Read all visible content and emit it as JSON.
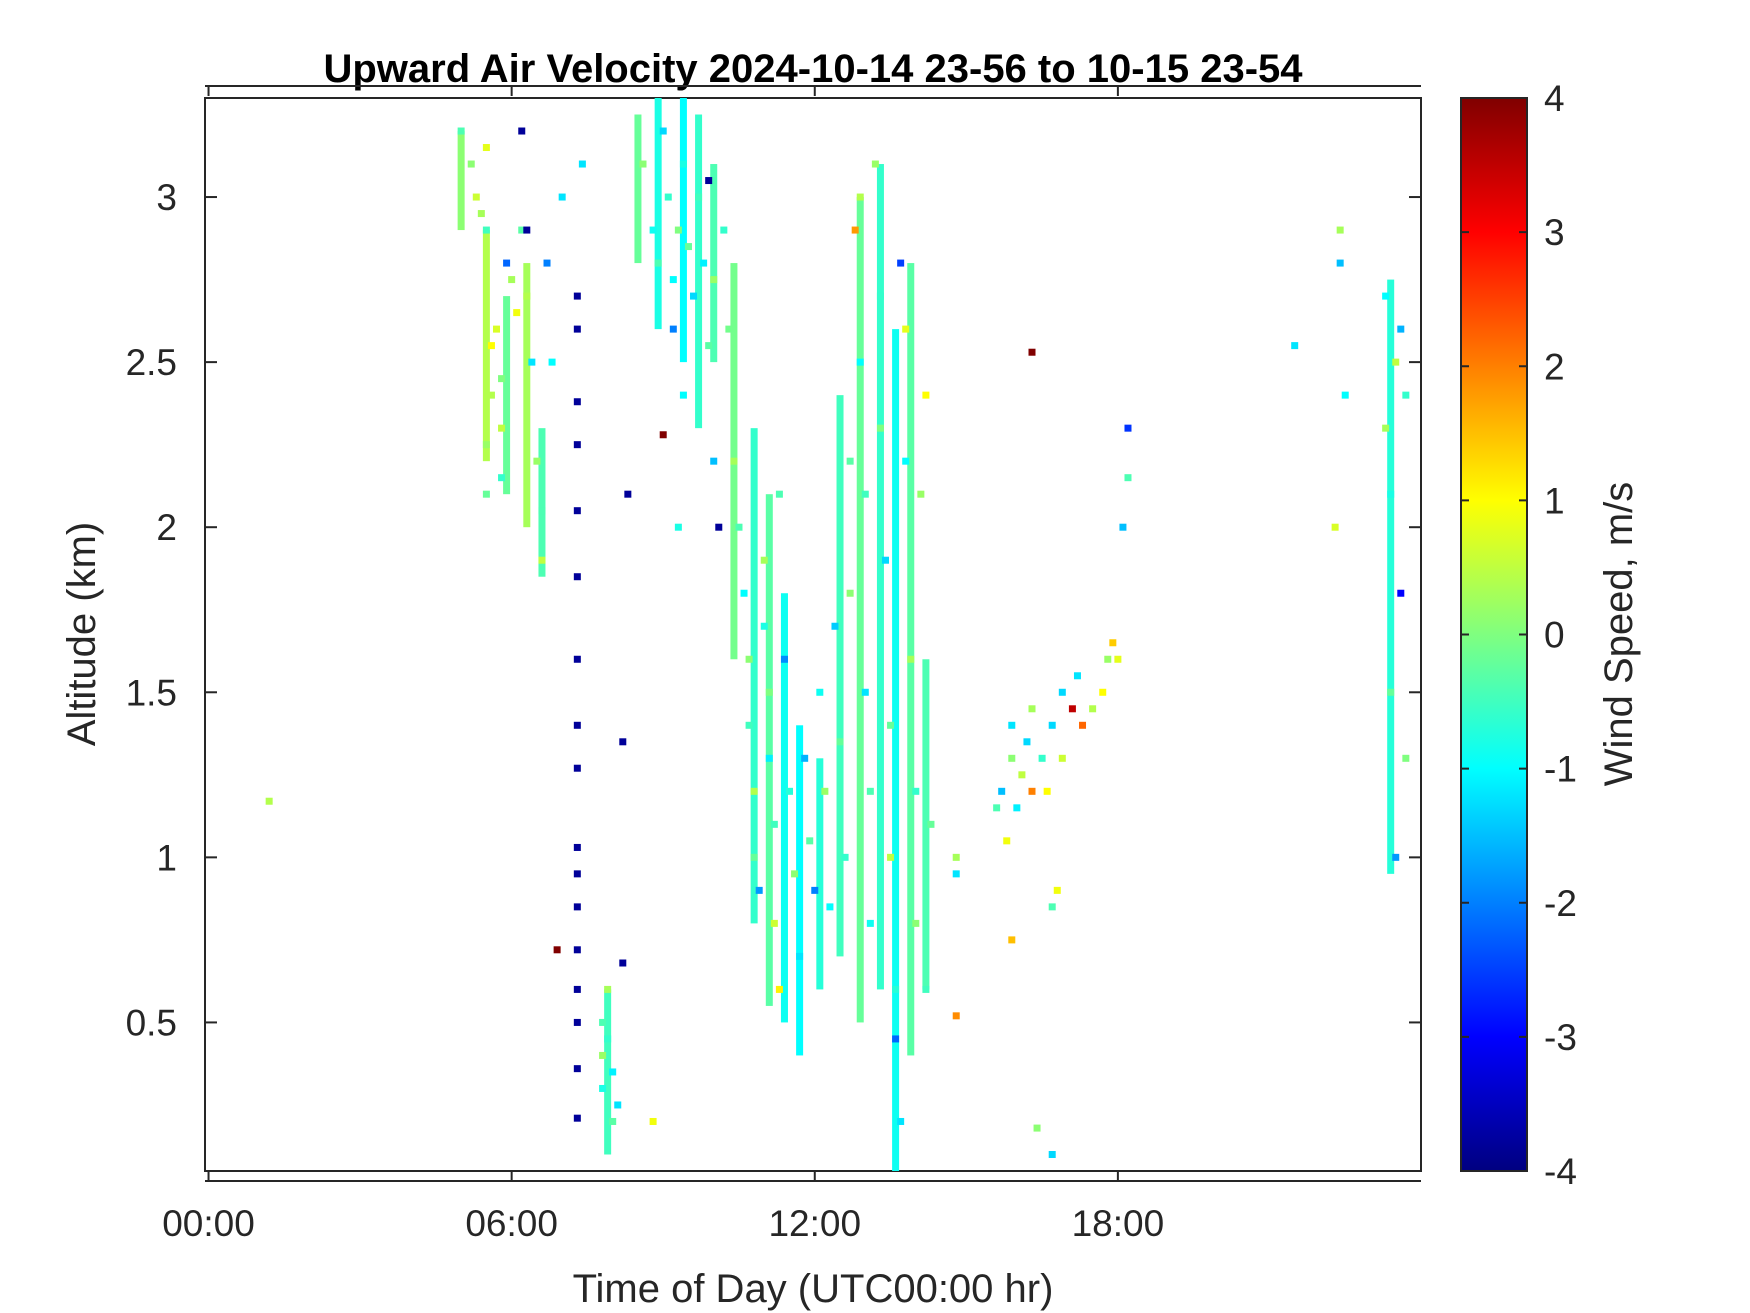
{
  "chart_data": {
    "type": "heatmap",
    "title": "Upward Air Velocity 2024-10-14 23-56 to 10-15 23-54",
    "xlabel": "Time of Day (UTC00:00 hr)",
    "ylabel": "Altitude (km)",
    "colorbar_label": "Wind Speed, m/s",
    "x_units": "hours",
    "xlim": [
      -0.07,
      24.0
    ],
    "ylim": [
      0.05,
      3.3
    ],
    "clim": [
      -4,
      4
    ],
    "colormap": "jet",
    "x_ticks": [
      {
        "value": 0,
        "label": "00:00"
      },
      {
        "value": 6,
        "label": "06:00"
      },
      {
        "value": 12,
        "label": "12:00"
      },
      {
        "value": 18,
        "label": "18:00"
      }
    ],
    "y_ticks": [
      {
        "value": 0.5,
        "label": "0.5"
      },
      {
        "value": 1.0,
        "label": "1"
      },
      {
        "value": 1.5,
        "label": "1.5"
      },
      {
        "value": 2.0,
        "label": "2"
      },
      {
        "value": 2.5,
        "label": "2.5"
      },
      {
        "value": 3.0,
        "label": "3"
      }
    ],
    "colorbar_ticks": [
      {
        "value": 4,
        "label": "4"
      },
      {
        "value": 3,
        "label": "3"
      },
      {
        "value": 2,
        "label": "2"
      },
      {
        "value": 1,
        "label": "1"
      },
      {
        "value": 0,
        "label": "0"
      },
      {
        "value": -1,
        "label": "-1"
      },
      {
        "value": -2,
        "label": "-2"
      },
      {
        "value": -3,
        "label": "-3"
      },
      {
        "value": -4,
        "label": "-4"
      }
    ],
    "cells": [
      {
        "t": 1.2,
        "z": 1.17,
        "v": 0.4
      },
      {
        "t": 5.0,
        "z": 3.2,
        "v": -0.4
      },
      {
        "t": 5.2,
        "z": 3.1,
        "v": 0.1
      },
      {
        "t": 5.3,
        "z": 3.0,
        "v": 0.6
      },
      {
        "t": 5.4,
        "z": 2.95,
        "v": 0.3
      },
      {
        "t": 5.5,
        "z": 3.15,
        "v": 0.8
      },
      {
        "t": 5.5,
        "z": 2.9,
        "v": -0.5
      },
      {
        "t": 5.6,
        "z": 2.55,
        "v": 1.0
      },
      {
        "t": 5.6,
        "z": 2.4,
        "v": 0.4
      },
      {
        "t": 5.5,
        "z": 2.25,
        "v": 0.2
      },
      {
        "t": 5.5,
        "z": 2.1,
        "v": -0.2
      },
      {
        "t": 5.7,
        "z": 2.6,
        "v": 0.7
      },
      {
        "t": 5.8,
        "z": 2.45,
        "v": 0.0
      },
      {
        "t": 5.8,
        "z": 2.3,
        "v": 0.5
      },
      {
        "t": 5.8,
        "z": 2.15,
        "v": -0.6
      },
      {
        "t": 5.9,
        "z": 2.8,
        "v": -2.2
      },
      {
        "t": 6.0,
        "z": 2.75,
        "v": 0.3
      },
      {
        "t": 6.1,
        "z": 2.65,
        "v": 0.9
      },
      {
        "t": 6.2,
        "z": 2.9,
        "v": -0.3
      },
      {
        "t": 6.3,
        "z": 2.7,
        "v": 0.4
      },
      {
        "t": 6.3,
        "z": 2.9,
        "v": -3.8
      },
      {
        "t": 6.4,
        "z": 2.5,
        "v": -1.2
      },
      {
        "t": 6.5,
        "z": 2.2,
        "v": 0.2
      },
      {
        "t": 6.6,
        "z": 2.05,
        "v": -0.4
      },
      {
        "t": 6.6,
        "z": 1.9,
        "v": 0.5
      },
      {
        "t": 6.7,
        "z": 2.8,
        "v": -2.0
      },
      {
        "t": 6.8,
        "z": 2.5,
        "v": -1.0
      },
      {
        "t": 7.0,
        "z": 3.0,
        "v": -1.2
      },
      {
        "t": 6.2,
        "z": 3.2,
        "v": -3.8
      },
      {
        "t": 7.3,
        "z": 2.7,
        "v": -3.8
      },
      {
        "t": 7.3,
        "z": 2.6,
        "v": -3.8
      },
      {
        "t": 7.3,
        "z": 2.38,
        "v": -3.8
      },
      {
        "t": 7.3,
        "z": 2.25,
        "v": -3.8
      },
      {
        "t": 7.3,
        "z": 2.05,
        "v": -3.8
      },
      {
        "t": 7.3,
        "z": 1.85,
        "v": -3.8
      },
      {
        "t": 7.3,
        "z": 1.6,
        "v": -3.8
      },
      {
        "t": 7.3,
        "z": 1.4,
        "v": -3.8
      },
      {
        "t": 7.3,
        "z": 1.27,
        "v": -3.8
      },
      {
        "t": 7.3,
        "z": 1.03,
        "v": -3.8
      },
      {
        "t": 7.3,
        "z": 0.95,
        "v": -3.8
      },
      {
        "t": 7.3,
        "z": 0.85,
        "v": -3.8
      },
      {
        "t": 7.3,
        "z": 0.72,
        "v": -3.8
      },
      {
        "t": 7.3,
        "z": 0.6,
        "v": -3.8
      },
      {
        "t": 7.3,
        "z": 0.5,
        "v": -3.8
      },
      {
        "t": 7.3,
        "z": 0.36,
        "v": -3.8
      },
      {
        "t": 7.3,
        "z": 0.21,
        "v": -3.8
      },
      {
        "t": 6.9,
        "z": 0.72,
        "v": 4.0
      },
      {
        "t": 7.4,
        "z": 3.1,
        "v": -1.2
      },
      {
        "t": 7.8,
        "z": 0.5,
        "v": -0.4
      },
      {
        "t": 7.8,
        "z": 0.4,
        "v": 0.2
      },
      {
        "t": 7.8,
        "z": 0.3,
        "v": -0.8
      },
      {
        "t": 7.9,
        "z": 0.6,
        "v": 0.3
      },
      {
        "t": 7.9,
        "z": 0.45,
        "v": -0.6
      },
      {
        "t": 8.0,
        "z": 0.35,
        "v": -1.1
      },
      {
        "t": 8.0,
        "z": 0.2,
        "v": -0.3
      },
      {
        "t": 8.1,
        "z": 0.25,
        "v": -1.2
      },
      {
        "t": 8.2,
        "z": 0.68,
        "v": -3.8
      },
      {
        "t": 8.2,
        "z": 1.35,
        "v": -3.8
      },
      {
        "t": 8.3,
        "z": 2.1,
        "v": -3.8
      },
      {
        "t": 8.8,
        "z": 0.2,
        "v": 0.9
      },
      {
        "t": 9.0,
        "z": 2.28,
        "v": 4.0
      },
      {
        "t": 8.6,
        "z": 3.1,
        "v": 0.1
      },
      {
        "t": 8.8,
        "z": 2.9,
        "v": -0.9
      },
      {
        "t": 8.9,
        "z": 2.8,
        "v": -0.4
      },
      {
        "t": 9.0,
        "z": 3.2,
        "v": -1.3
      },
      {
        "t": 9.1,
        "z": 3.0,
        "v": -0.6
      },
      {
        "t": 9.2,
        "z": 2.75,
        "v": -1.0
      },
      {
        "t": 9.2,
        "z": 2.6,
        "v": -2.0
      },
      {
        "t": 9.3,
        "z": 2.9,
        "v": 0.0
      },
      {
        "t": 9.4,
        "z": 3.1,
        "v": -0.8
      },
      {
        "t": 9.4,
        "z": 2.4,
        "v": -1.0
      },
      {
        "t": 9.3,
        "z": 2.0,
        "v": -0.8
      },
      {
        "t": 9.5,
        "z": 2.85,
        "v": -0.2
      },
      {
        "t": 9.6,
        "z": 2.7,
        "v": -1.3
      },
      {
        "t": 9.7,
        "z": 3.0,
        "v": -0.5
      },
      {
        "t": 9.8,
        "z": 2.8,
        "v": -1.1
      },
      {
        "t": 9.9,
        "z": 3.05,
        "v": -3.8
      },
      {
        "t": 9.9,
        "z": 2.55,
        "v": -0.3
      },
      {
        "t": 10.0,
        "z": 2.75,
        "v": 0.2
      },
      {
        "t": 10.0,
        "z": 2.2,
        "v": -1.5
      },
      {
        "t": 10.1,
        "z": 2.0,
        "v": -3.8
      },
      {
        "t": 10.2,
        "z": 2.9,
        "v": -0.6
      },
      {
        "t": 10.3,
        "z": 2.6,
        "v": -0.1
      },
      {
        "t": 10.4,
        "z": 2.2,
        "v": 0.3
      },
      {
        "t": 10.5,
        "z": 2.0,
        "v": -0.4
      },
      {
        "t": 10.6,
        "z": 1.8,
        "v": -1.0
      },
      {
        "t": 10.7,
        "z": 1.6,
        "v": 0.1
      },
      {
        "t": 10.7,
        "z": 1.4,
        "v": -0.5
      },
      {
        "t": 10.8,
        "z": 1.2,
        "v": 0.4
      },
      {
        "t": 10.8,
        "z": 1.0,
        "v": -0.2
      },
      {
        "t": 10.9,
        "z": 0.9,
        "v": -1.8
      },
      {
        "t": 11.0,
        "z": 1.9,
        "v": 0.3
      },
      {
        "t": 11.0,
        "z": 1.7,
        "v": -0.8
      },
      {
        "t": 11.1,
        "z": 1.5,
        "v": 0.0
      },
      {
        "t": 11.1,
        "z": 1.3,
        "v": -1.1
      },
      {
        "t": 11.2,
        "z": 1.1,
        "v": -0.5
      },
      {
        "t": 11.2,
        "z": 0.8,
        "v": 0.6
      },
      {
        "t": 11.3,
        "z": 0.6,
        "v": 1.1
      },
      {
        "t": 11.3,
        "z": 2.1,
        "v": -0.4
      },
      {
        "t": 11.4,
        "z": 1.6,
        "v": -1.9
      },
      {
        "t": 11.5,
        "z": 1.2,
        "v": -0.7
      },
      {
        "t": 11.6,
        "z": 0.95,
        "v": 0.1
      },
      {
        "t": 11.7,
        "z": 0.7,
        "v": -1.2
      },
      {
        "t": 11.8,
        "z": 1.3,
        "v": -1.6
      },
      {
        "t": 11.9,
        "z": 1.05,
        "v": -0.3
      },
      {
        "t": 12.0,
        "z": 0.9,
        "v": -2.0
      },
      {
        "t": 12.1,
        "z": 1.5,
        "v": -0.9
      },
      {
        "t": 12.2,
        "z": 1.2,
        "v": 0.2
      },
      {
        "t": 12.3,
        "z": 0.85,
        "v": -1.0
      },
      {
        "t": 12.4,
        "z": 1.7,
        "v": -1.4
      },
      {
        "t": 12.5,
        "z": 1.35,
        "v": -0.2
      },
      {
        "t": 12.6,
        "z": 1.0,
        "v": -0.6
      },
      {
        "t": 12.7,
        "z": 2.2,
        "v": -0.3
      },
      {
        "t": 12.7,
        "z": 1.8,
        "v": 0.1
      },
      {
        "t": 12.8,
        "z": 2.9,
        "v": 1.8
      },
      {
        "t": 12.9,
        "z": 3.0,
        "v": 0.4
      },
      {
        "t": 12.9,
        "z": 2.5,
        "v": -1.0
      },
      {
        "t": 13.0,
        "z": 2.1,
        "v": -0.5
      },
      {
        "t": 13.0,
        "z": 1.5,
        "v": -1.2
      },
      {
        "t": 13.1,
        "z": 1.2,
        "v": -0.4
      },
      {
        "t": 13.1,
        "z": 0.8,
        "v": -0.9
      },
      {
        "t": 13.2,
        "z": 3.1,
        "v": 0.2
      },
      {
        "t": 13.3,
        "z": 2.7,
        "v": -0.6
      },
      {
        "t": 13.3,
        "z": 2.3,
        "v": 0.0
      },
      {
        "t": 13.4,
        "z": 1.9,
        "v": -1.3
      },
      {
        "t": 13.5,
        "z": 1.4,
        "v": -0.2
      },
      {
        "t": 13.5,
        "z": 1.0,
        "v": 0.5
      },
      {
        "t": 13.6,
        "z": 0.6,
        "v": -0.7
      },
      {
        "t": 13.6,
        "z": 0.45,
        "v": -2.2
      },
      {
        "t": 13.7,
        "z": 0.2,
        "v": -1.2
      },
      {
        "t": 13.7,
        "z": 2.8,
        "v": -2.5
      },
      {
        "t": 13.8,
        "z": 2.6,
        "v": 0.8
      },
      {
        "t": 13.8,
        "z": 2.2,
        "v": -1.0
      },
      {
        "t": 13.9,
        "z": 1.6,
        "v": 0.3
      },
      {
        "t": 14.0,
        "z": 1.2,
        "v": -0.6
      },
      {
        "t": 14.0,
        "z": 0.8,
        "v": 0.1
      },
      {
        "t": 14.1,
        "z": 2.1,
        "v": 0.2
      },
      {
        "t": 14.2,
        "z": 2.4,
        "v": 1.0
      },
      {
        "t": 14.3,
        "z": 1.1,
        "v": -0.2
      },
      {
        "t": 14.2,
        "z": 0.6,
        "v": -0.5
      },
      {
        "t": 14.8,
        "z": 1.0,
        "v": 0.3
      },
      {
        "t": 14.8,
        "z": 0.95,
        "v": -1.2
      },
      {
        "t": 14.8,
        "z": 0.52,
        "v": 1.9
      },
      {
        "t": 15.6,
        "z": 1.15,
        "v": -0.4
      },
      {
        "t": 15.7,
        "z": 1.2,
        "v": -1.5
      },
      {
        "t": 15.8,
        "z": 1.05,
        "v": 0.9
      },
      {
        "t": 15.9,
        "z": 1.4,
        "v": -1.2
      },
      {
        "t": 15.9,
        "z": 1.3,
        "v": 0.1
      },
      {
        "t": 15.9,
        "z": 0.75,
        "v": 1.5
      },
      {
        "t": 16.0,
        "z": 1.15,
        "v": -1.1
      },
      {
        "t": 16.1,
        "z": 1.25,
        "v": 0.5
      },
      {
        "t": 16.2,
        "z": 1.35,
        "v": -1.3
      },
      {
        "t": 16.3,
        "z": 1.2,
        "v": 2.0
      },
      {
        "t": 16.3,
        "z": 1.45,
        "v": 0.3
      },
      {
        "t": 16.3,
        "z": 2.53,
        "v": 4.0
      },
      {
        "t": 16.4,
        "z": 0.18,
        "v": 0.1
      },
      {
        "t": 16.5,
        "z": 1.3,
        "v": -0.6
      },
      {
        "t": 16.6,
        "z": 1.2,
        "v": 1.0
      },
      {
        "t": 16.7,
        "z": 1.4,
        "v": -1.3
      },
      {
        "t": 16.7,
        "z": 0.85,
        "v": -0.4
      },
      {
        "t": 16.7,
        "z": 0.1,
        "v": -1.3
      },
      {
        "t": 16.8,
        "z": 0.9,
        "v": 0.9
      },
      {
        "t": 16.9,
        "z": 1.3,
        "v": 0.6
      },
      {
        "t": 16.9,
        "z": 1.5,
        "v": -1.3
      },
      {
        "t": 17.1,
        "z": 1.45,
        "v": 3.5
      },
      {
        "t": 17.2,
        "z": 1.55,
        "v": -1.2
      },
      {
        "t": 17.3,
        "z": 1.4,
        "v": 2.2
      },
      {
        "t": 17.5,
        "z": 1.45,
        "v": 0.4
      },
      {
        "t": 17.7,
        "z": 1.5,
        "v": 1.0
      },
      {
        "t": 17.8,
        "z": 1.6,
        "v": 0.2
      },
      {
        "t": 17.9,
        "z": 1.65,
        "v": 1.4
      },
      {
        "t": 18.0,
        "z": 1.6,
        "v": 0.8
      },
      {
        "t": 18.1,
        "z": 2.0,
        "v": -1.5
      },
      {
        "t": 18.2,
        "z": 2.3,
        "v": -2.6
      },
      {
        "t": 18.2,
        "z": 2.15,
        "v": -0.4
      },
      {
        "t": 21.5,
        "z": 2.55,
        "v": -1.2
      },
      {
        "t": 22.3,
        "z": 2.0,
        "v": 0.7
      },
      {
        "t": 22.4,
        "z": 2.9,
        "v": 0.3
      },
      {
        "t": 22.4,
        "z": 2.8,
        "v": -1.5
      },
      {
        "t": 22.5,
        "z": 2.4,
        "v": -1.0
      },
      {
        "t": 23.3,
        "z": 2.7,
        "v": -1.0
      },
      {
        "t": 23.3,
        "z": 2.3,
        "v": 0.3
      },
      {
        "t": 23.4,
        "z": 2.1,
        "v": -0.8
      },
      {
        "t": 23.4,
        "z": 1.5,
        "v": -0.2
      },
      {
        "t": 23.5,
        "z": 2.5,
        "v": 0.5
      },
      {
        "t": 23.5,
        "z": 1.0,
        "v": -1.8
      },
      {
        "t": 23.6,
        "z": 2.6,
        "v": -1.6
      },
      {
        "t": 23.6,
        "z": 1.8,
        "v": -3.0
      },
      {
        "t": 23.7,
        "z": 2.4,
        "v": -0.6
      },
      {
        "t": 23.7,
        "z": 1.3,
        "v": 0.0
      }
    ],
    "columns": [
      {
        "t": 5.0,
        "z0": 2.9,
        "z1": 3.2,
        "v": 0.1
      },
      {
        "t": 5.5,
        "z0": 2.2,
        "z1": 2.9,
        "v": 0.4
      },
      {
        "t": 5.9,
        "z0": 2.1,
        "z1": 2.7,
        "v": -0.2
      },
      {
        "t": 6.3,
        "z0": 2.0,
        "z1": 2.8,
        "v": 0.3
      },
      {
        "t": 6.6,
        "z0": 1.85,
        "z1": 2.3,
        "v": -0.4
      },
      {
        "t": 7.9,
        "z0": 0.1,
        "z1": 0.6,
        "v": -0.5
      },
      {
        "t": 8.5,
        "z0": 2.8,
        "z1": 3.25,
        "v": -0.2
      },
      {
        "t": 8.9,
        "z0": 2.6,
        "z1": 3.3,
        "v": -0.8
      },
      {
        "t": 9.4,
        "z0": 2.5,
        "z1": 3.3,
        "v": -1.0
      },
      {
        "t": 9.7,
        "z0": 2.3,
        "z1": 3.25,
        "v": -0.6
      },
      {
        "t": 10.0,
        "z0": 2.5,
        "z1": 3.1,
        "v": -0.4
      },
      {
        "t": 10.4,
        "z0": 1.6,
        "z1": 2.8,
        "v": -0.1
      },
      {
        "t": 10.8,
        "z0": 0.8,
        "z1": 2.3,
        "v": -0.6
      },
      {
        "t": 11.1,
        "z0": 0.55,
        "z1": 2.1,
        "v": -0.3
      },
      {
        "t": 11.4,
        "z0": 0.5,
        "z1": 1.8,
        "v": -0.9
      },
      {
        "t": 11.7,
        "z0": 0.4,
        "z1": 1.4,
        "v": -1.0
      },
      {
        "t": 12.1,
        "z0": 0.6,
        "z1": 1.3,
        "v": -0.7
      },
      {
        "t": 12.5,
        "z0": 0.7,
        "z1": 2.4,
        "v": -0.5
      },
      {
        "t": 12.9,
        "z0": 0.5,
        "z1": 3.0,
        "v": -0.2
      },
      {
        "t": 13.3,
        "z0": 0.6,
        "z1": 3.1,
        "v": -0.6
      },
      {
        "t": 13.6,
        "z0": 0.05,
        "z1": 2.6,
        "v": -0.9
      },
      {
        "t": 13.9,
        "z0": 0.4,
        "z1": 2.8,
        "v": -0.3
      },
      {
        "t": 14.2,
        "z0": 0.6,
        "z1": 1.6,
        "v": -0.4
      },
      {
        "t": 23.4,
        "z0": 0.95,
        "z1": 2.75,
        "v": -0.7
      }
    ]
  }
}
